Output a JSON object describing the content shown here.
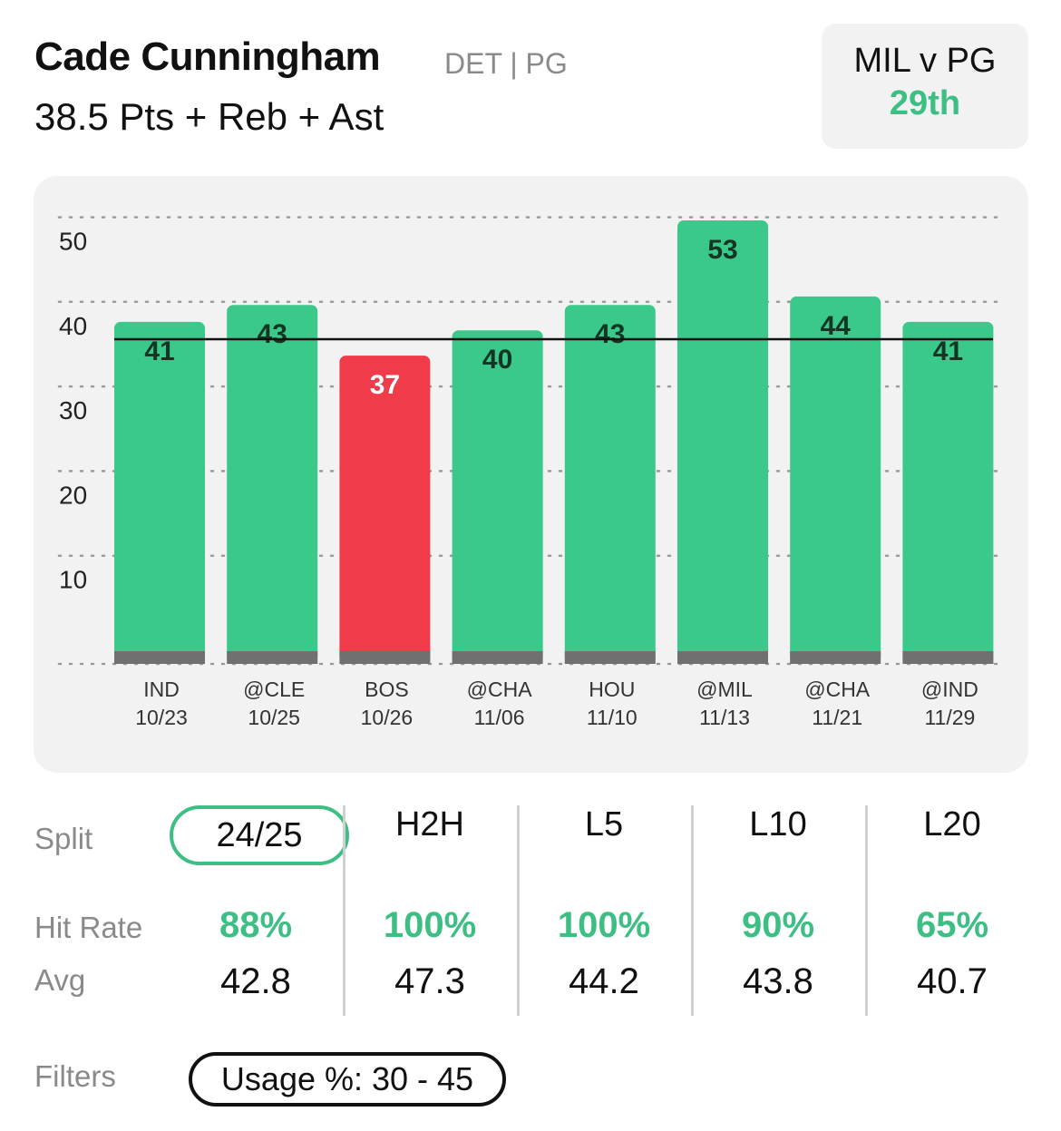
{
  "header": {
    "player_name": "Cade Cunningham",
    "team_position": "DET | PG",
    "prop": "38.5 Pts + Reb + Ast"
  },
  "matchup": {
    "title": "MIL v PG",
    "rank": "29th",
    "rank_color": "#3dbf84"
  },
  "chart_data": {
    "type": "bar",
    "categories": [
      "IND 10/23",
      "@CLE 10/25",
      "BOS 10/26",
      "@CHA 11/06",
      "HOU 11/10",
      "@MIL 11/13",
      "@CHA 11/21",
      "@IND 11/29"
    ],
    "opponents": [
      "IND",
      "@CLE",
      "BOS",
      "@CHA",
      "HOU",
      "@MIL",
      "@CHA",
      "@IND"
    ],
    "dates": [
      "10/23",
      "10/25",
      "10/26",
      "11/06",
      "11/10",
      "11/13",
      "11/21",
      "11/29"
    ],
    "values": [
      41,
      43,
      37,
      40,
      43,
      53,
      44,
      41
    ],
    "line": 38.5,
    "ylim": [
      0,
      55
    ],
    "yticks": [
      10,
      20,
      30,
      40,
      50
    ],
    "grid": true,
    "colors": {
      "over": "#3ac98a",
      "under": "#ef3b4a",
      "base": "#707070"
    }
  },
  "stats": {
    "labels": {
      "split": "Split",
      "hit_rate": "Hit Rate",
      "avg": "Avg"
    },
    "columns": [
      {
        "split": "24/25",
        "hit_rate": "88%",
        "avg": "42.8",
        "active": true
      },
      {
        "split": "H2H",
        "hit_rate": "100%",
        "avg": "47.3",
        "active": false
      },
      {
        "split": "L5",
        "hit_rate": "100%",
        "avg": "44.2",
        "active": false
      },
      {
        "split": "L10",
        "hit_rate": "90%",
        "avg": "43.8",
        "active": false
      },
      {
        "split": "L20",
        "hit_rate": "65%",
        "avg": "40.7",
        "active": false
      }
    ]
  },
  "filters": {
    "label": "Filters",
    "chip": "Usage %: 30 - 45"
  }
}
